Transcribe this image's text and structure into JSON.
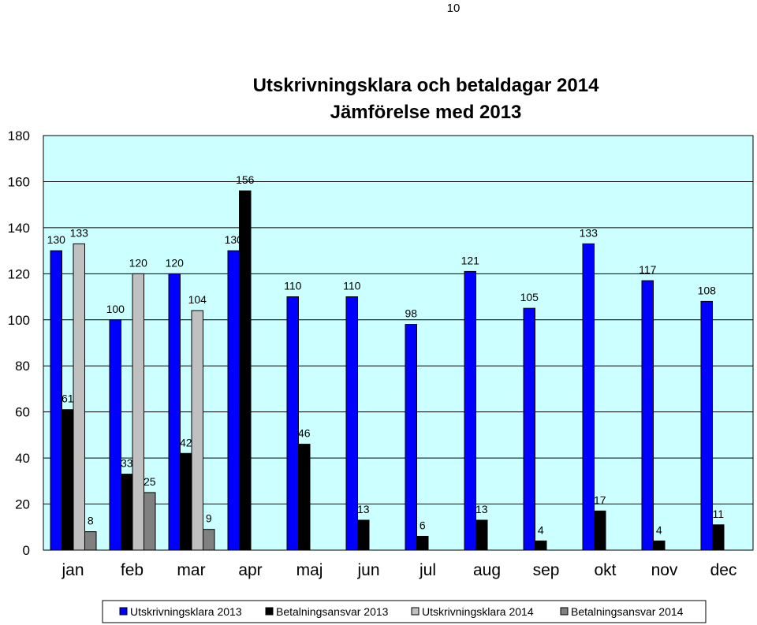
{
  "page": {
    "number": "10"
  },
  "chart_data": {
    "type": "bar",
    "title": "Utskrivningsklara och betaldagar 2014",
    "subtitle": "Jämförelse med 2013",
    "categories": [
      "jan",
      "feb",
      "mar",
      "apr",
      "maj",
      "jun",
      "jul",
      "aug",
      "sep",
      "okt",
      "nov",
      "dec"
    ],
    "series": [
      {
        "name": "Utskrivningsklara 2013",
        "color": "#0000ff",
        "values": [
          130,
          100,
          120,
          130,
          110,
          110,
          98,
          121,
          105,
          133,
          117,
          108
        ]
      },
      {
        "name": "Betalningsansvar 2013",
        "color": "#000000",
        "values": [
          61,
          33,
          42,
          156,
          46,
          13,
          6,
          13,
          4,
          17,
          4,
          11
        ]
      },
      {
        "name": "Utskrivningsklara 2014",
        "color": "#c0c0c0",
        "values": [
          133,
          120,
          104,
          null,
          null,
          null,
          null,
          null,
          null,
          null,
          null,
          null
        ]
      },
      {
        "name": "Betalningsansvar 2014",
        "color": "#808080",
        "values": [
          8,
          25,
          9,
          null,
          null,
          null,
          null,
          null,
          null,
          null,
          null,
          null
        ]
      }
    ],
    "yticks": [
      0,
      20,
      40,
      60,
      80,
      100,
      120,
      140,
      160,
      180
    ],
    "ylim": [
      0,
      180
    ],
    "grid": true,
    "plot_background": "#ccffff",
    "legend_position": "bottom",
    "xlabel": "",
    "ylabel": ""
  }
}
